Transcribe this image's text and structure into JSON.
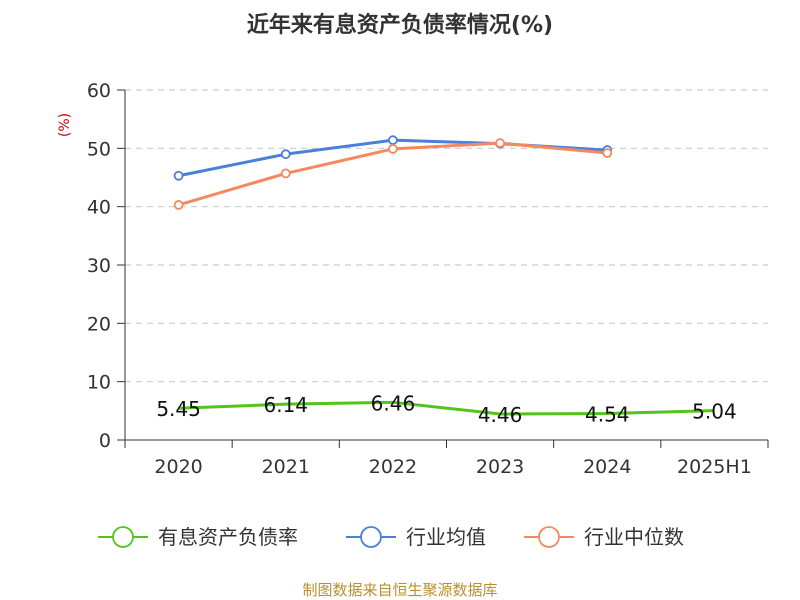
{
  "chart_data": {
    "type": "line",
    "title": "近年来有息资产负债率情况(%)",
    "ylabel": "(%)",
    "xlabel": "",
    "categories": [
      "2020",
      "2021",
      "2022",
      "2023",
      "2024",
      "2025H1"
    ],
    "ylim": [
      0,
      60
    ],
    "yticks": [
      0,
      10,
      20,
      30,
      40,
      50,
      60
    ],
    "grid": true,
    "legend_position": "bottom",
    "series": [
      {
        "name": "有息资产负债率",
        "color": "#52c41a",
        "values": [
          5.45,
          6.14,
          6.46,
          4.46,
          4.54,
          5.04
        ],
        "labels": [
          "5.45",
          "6.14",
          "6.46",
          "4.46",
          "4.54",
          "5.04"
        ]
      },
      {
        "name": "行业均值",
        "color": "#4a7fdb",
        "values": [
          45.3,
          49.0,
          51.4,
          50.8,
          49.7,
          null
        ]
      },
      {
        "name": "行业中位数",
        "color": "#f4895f",
        "values": [
          40.3,
          45.7,
          49.9,
          50.9,
          49.2,
          null
        ]
      }
    ]
  },
  "source_text": "制图数据来自恒生聚源数据库"
}
